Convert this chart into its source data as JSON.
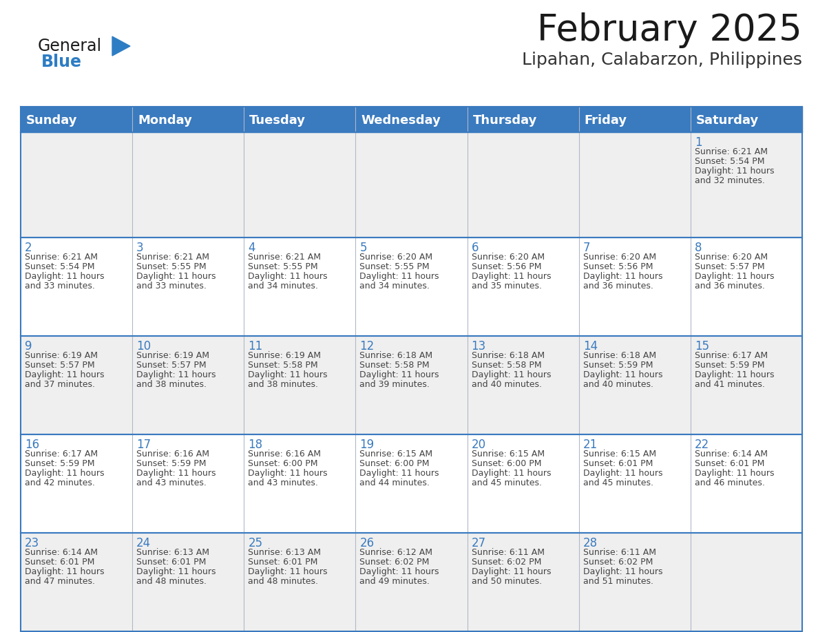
{
  "title": "February 2025",
  "subtitle": "Lipahan, Calabarzon, Philippines",
  "header_color": "#3a7abf",
  "header_text_color": "#ffffff",
  "bg_color": "#ffffff",
  "alt_row_color": "#efefef",
  "row_bg_color": "#ffffff",
  "grid_line_color": "#3a7abf",
  "day_headers": [
    "Sunday",
    "Monday",
    "Tuesday",
    "Wednesday",
    "Thursday",
    "Friday",
    "Saturday"
  ],
  "text_color": "#444444",
  "day_num_color": "#3a7abf",
  "title_fontsize": 38,
  "subtitle_fontsize": 18,
  "header_fontsize": 13,
  "day_num_fontsize": 12,
  "cell_text_fontsize": 9,
  "calendar": [
    [
      null,
      null,
      null,
      null,
      null,
      null,
      {
        "day": 1,
        "sunrise": "6:21 AM",
        "sunset": "5:54 PM",
        "daylight": "11 hours",
        "daylight2": "and 32 minutes."
      }
    ],
    [
      {
        "day": 2,
        "sunrise": "6:21 AM",
        "sunset": "5:54 PM",
        "daylight": "11 hours",
        "daylight2": "and 33 minutes."
      },
      {
        "day": 3,
        "sunrise": "6:21 AM",
        "sunset": "5:55 PM",
        "daylight": "11 hours",
        "daylight2": "and 33 minutes."
      },
      {
        "day": 4,
        "sunrise": "6:21 AM",
        "sunset": "5:55 PM",
        "daylight": "11 hours",
        "daylight2": "and 34 minutes."
      },
      {
        "day": 5,
        "sunrise": "6:20 AM",
        "sunset": "5:55 PM",
        "daylight": "11 hours",
        "daylight2": "and 34 minutes."
      },
      {
        "day": 6,
        "sunrise": "6:20 AM",
        "sunset": "5:56 PM",
        "daylight": "11 hours",
        "daylight2": "and 35 minutes."
      },
      {
        "day": 7,
        "sunrise": "6:20 AM",
        "sunset": "5:56 PM",
        "daylight": "11 hours",
        "daylight2": "and 36 minutes."
      },
      {
        "day": 8,
        "sunrise": "6:20 AM",
        "sunset": "5:57 PM",
        "daylight": "11 hours",
        "daylight2": "and 36 minutes."
      }
    ],
    [
      {
        "day": 9,
        "sunrise": "6:19 AM",
        "sunset": "5:57 PM",
        "daylight": "11 hours",
        "daylight2": "and 37 minutes."
      },
      {
        "day": 10,
        "sunrise": "6:19 AM",
        "sunset": "5:57 PM",
        "daylight": "11 hours",
        "daylight2": "and 38 minutes."
      },
      {
        "day": 11,
        "sunrise": "6:19 AM",
        "sunset": "5:58 PM",
        "daylight": "11 hours",
        "daylight2": "and 38 minutes."
      },
      {
        "day": 12,
        "sunrise": "6:18 AM",
        "sunset": "5:58 PM",
        "daylight": "11 hours",
        "daylight2": "and 39 minutes."
      },
      {
        "day": 13,
        "sunrise": "6:18 AM",
        "sunset": "5:58 PM",
        "daylight": "11 hours",
        "daylight2": "and 40 minutes."
      },
      {
        "day": 14,
        "sunrise": "6:18 AM",
        "sunset": "5:59 PM",
        "daylight": "11 hours",
        "daylight2": "and 40 minutes."
      },
      {
        "day": 15,
        "sunrise": "6:17 AM",
        "sunset": "5:59 PM",
        "daylight": "11 hours",
        "daylight2": "and 41 minutes."
      }
    ],
    [
      {
        "day": 16,
        "sunrise": "6:17 AM",
        "sunset": "5:59 PM",
        "daylight": "11 hours",
        "daylight2": "and 42 minutes."
      },
      {
        "day": 17,
        "sunrise": "6:16 AM",
        "sunset": "5:59 PM",
        "daylight": "11 hours",
        "daylight2": "and 43 minutes."
      },
      {
        "day": 18,
        "sunrise": "6:16 AM",
        "sunset": "6:00 PM",
        "daylight": "11 hours",
        "daylight2": "and 43 minutes."
      },
      {
        "day": 19,
        "sunrise": "6:15 AM",
        "sunset": "6:00 PM",
        "daylight": "11 hours",
        "daylight2": "and 44 minutes."
      },
      {
        "day": 20,
        "sunrise": "6:15 AM",
        "sunset": "6:00 PM",
        "daylight": "11 hours",
        "daylight2": "and 45 minutes."
      },
      {
        "day": 21,
        "sunrise": "6:15 AM",
        "sunset": "6:01 PM",
        "daylight": "11 hours",
        "daylight2": "and 45 minutes."
      },
      {
        "day": 22,
        "sunrise": "6:14 AM",
        "sunset": "6:01 PM",
        "daylight": "11 hours",
        "daylight2": "and 46 minutes."
      }
    ],
    [
      {
        "day": 23,
        "sunrise": "6:14 AM",
        "sunset": "6:01 PM",
        "daylight": "11 hours",
        "daylight2": "and 47 minutes."
      },
      {
        "day": 24,
        "sunrise": "6:13 AM",
        "sunset": "6:01 PM",
        "daylight": "11 hours",
        "daylight2": "and 48 minutes."
      },
      {
        "day": 25,
        "sunrise": "6:13 AM",
        "sunset": "6:01 PM",
        "daylight": "11 hours",
        "daylight2": "and 48 minutes."
      },
      {
        "day": 26,
        "sunrise": "6:12 AM",
        "sunset": "6:02 PM",
        "daylight": "11 hours",
        "daylight2": "and 49 minutes."
      },
      {
        "day": 27,
        "sunrise": "6:11 AM",
        "sunset": "6:02 PM",
        "daylight": "11 hours",
        "daylight2": "and 50 minutes."
      },
      {
        "day": 28,
        "sunrise": "6:11 AM",
        "sunset": "6:02 PM",
        "daylight": "11 hours",
        "daylight2": "and 51 minutes."
      },
      null
    ]
  ]
}
